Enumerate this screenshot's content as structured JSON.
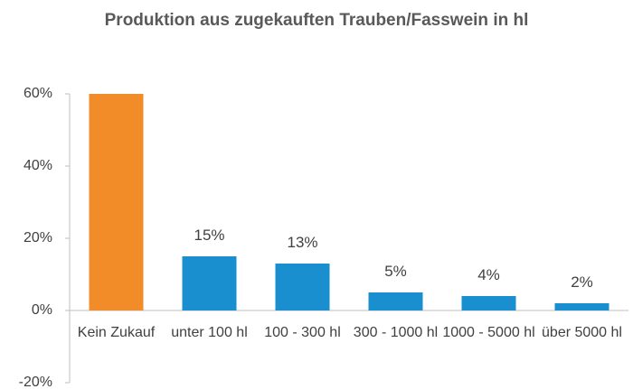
{
  "chart_data": {
    "type": "bar",
    "title": "Produktion aus zugekauften Trauben/Fasswein in hl",
    "categories": [
      "Kein Zukauf",
      "unter 100 hl",
      "100 - 300 hl",
      "300 - 1000 hl",
      "1000 - 5000 hl",
      "über 5000 hl"
    ],
    "values": [
      60,
      15,
      13,
      5,
      4,
      2
    ],
    "value_labels": [
      null,
      "15%",
      "13%",
      "5%",
      "4%",
      "2%"
    ],
    "colors": [
      "#f28c28",
      "#1a8fd0",
      "#1a8fd0",
      "#1a8fd0",
      "#1a8fd0",
      "#1a8fd0"
    ],
    "ylim": [
      -20,
      60
    ],
    "yticks": [
      {
        "value": -20,
        "label": "-20%"
      },
      {
        "value": 0,
        "label": "0%"
      },
      {
        "value": 20,
        "label": "20%"
      },
      {
        "value": 40,
        "label": "40%"
      },
      {
        "value": 60,
        "label": "60%"
      }
    ],
    "grid": false
  }
}
